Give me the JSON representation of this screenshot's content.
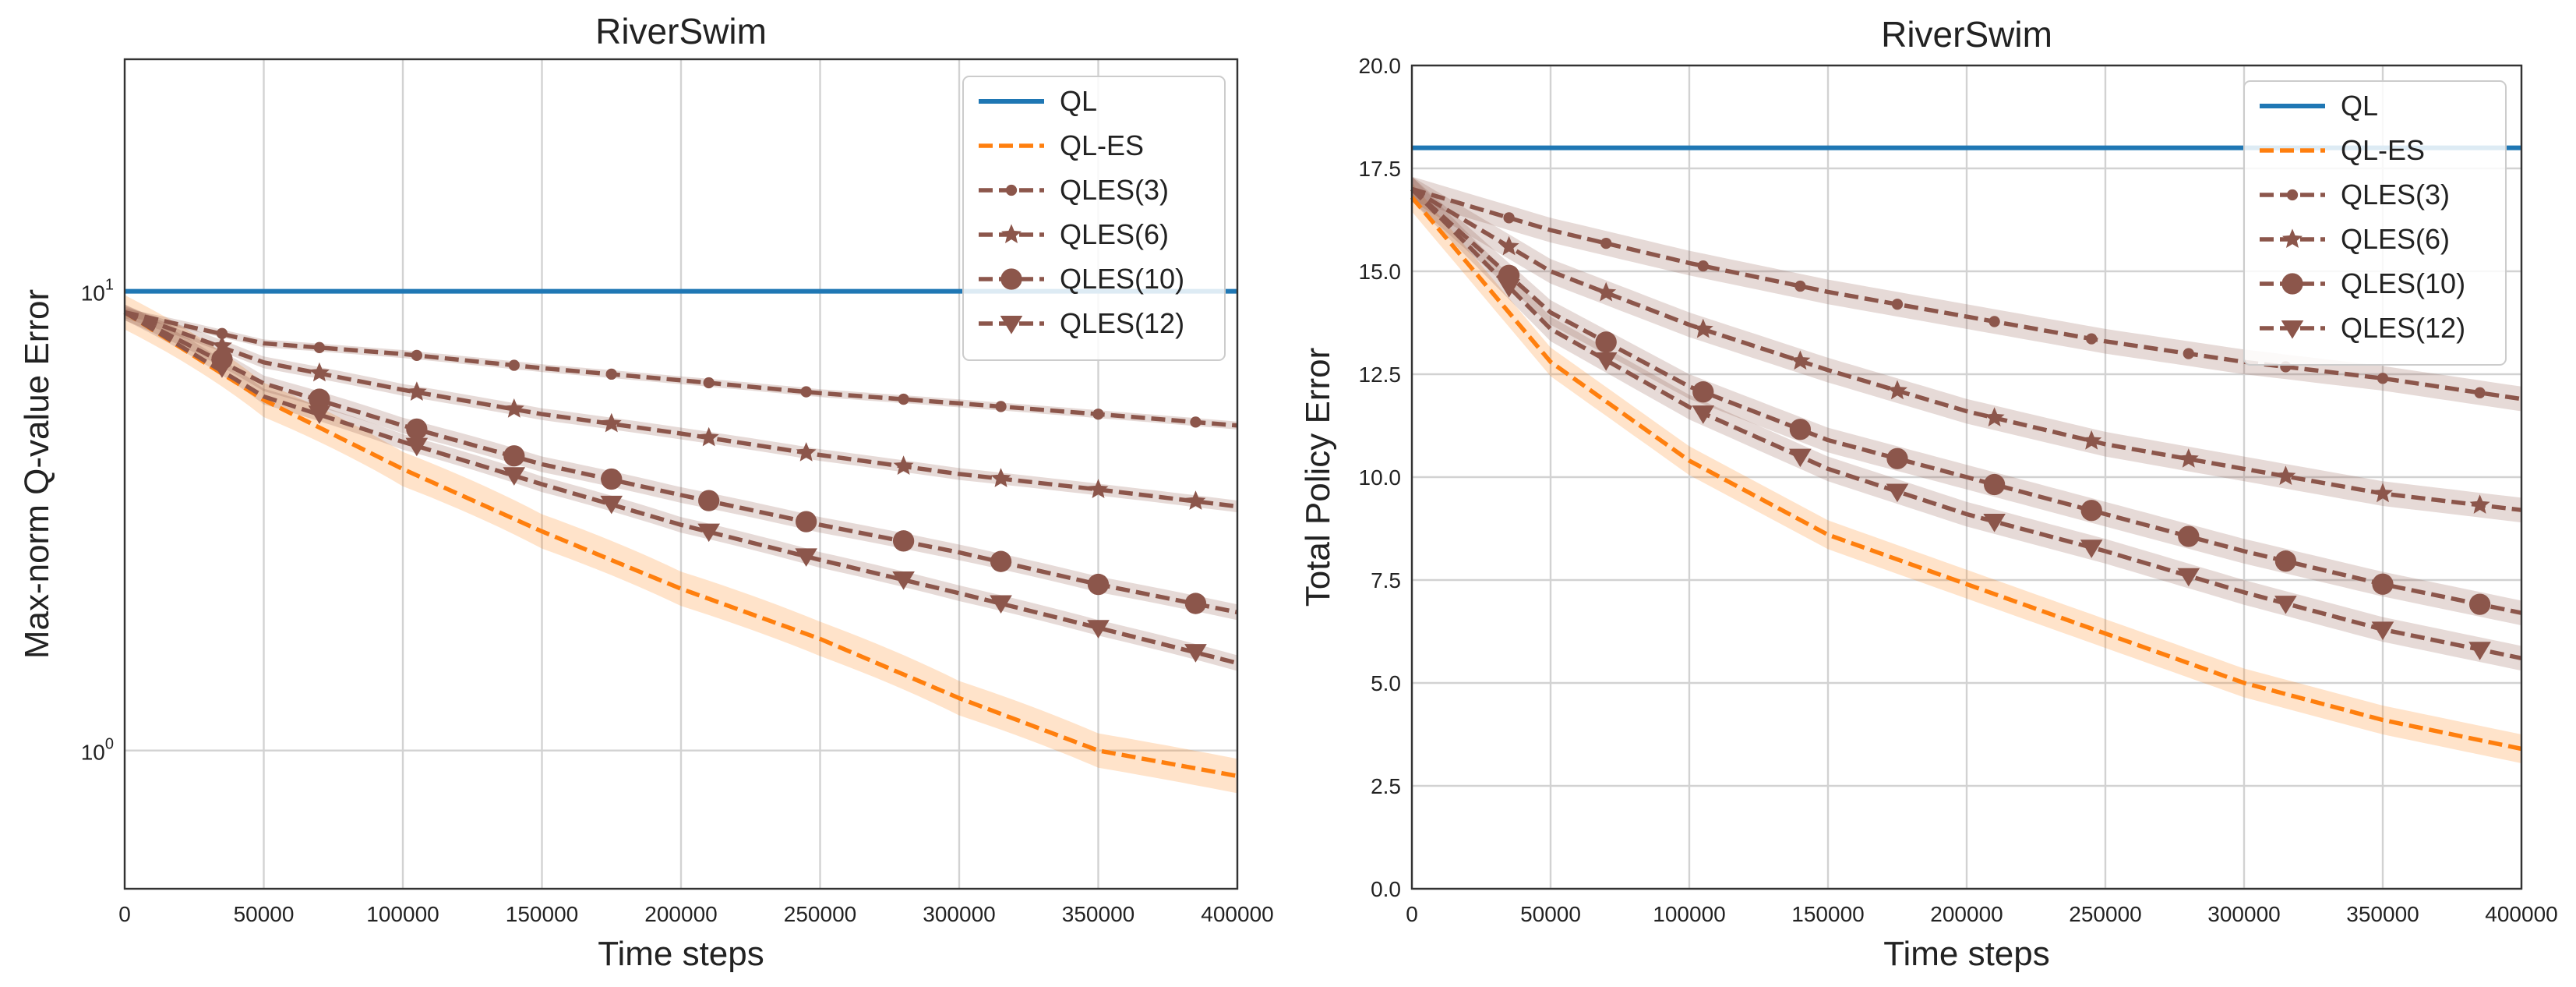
{
  "chart_data": [
    {
      "type": "line",
      "title": "RiverSwim",
      "xlabel": "Time steps",
      "ylabel": "Max-norm Q-value Error",
      "yscale": "log",
      "xlim": [
        0,
        400000
      ],
      "ylim": [
        0.5,
        32
      ],
      "xticks": [
        0,
        50000,
        100000,
        150000,
        200000,
        250000,
        300000,
        350000,
        400000
      ],
      "xtick_labels": [
        "0",
        "50000",
        "100000",
        "150000",
        "200000",
        "250000",
        "300000",
        "350000",
        "400000"
      ],
      "ytick_values": [
        1,
        10
      ],
      "ytick_labels": [
        {
          "base": "10",
          "exp": "0"
        },
        {
          "base": "10",
          "exp": "1"
        }
      ],
      "grid": true,
      "legend_position": "top-right",
      "x": [
        0,
        50000,
        100000,
        150000,
        200000,
        250000,
        300000,
        350000,
        400000
      ],
      "series": [
        {
          "name": "QL",
          "color": "#1f77b4",
          "style": "solid",
          "marker": "none",
          "values": [
            10,
            10,
            10,
            10,
            10,
            10,
            10,
            10,
            10
          ],
          "band": 0
        },
        {
          "name": "QL-ES",
          "color": "#ff7f0e",
          "style": "dashed",
          "marker": "none",
          "values": [
            9.0,
            5.8,
            4.1,
            3.0,
            2.25,
            1.75,
            1.3,
            1.0,
            0.88
          ],
          "band": 0.09
        },
        {
          "name": "QLES(3)",
          "color": "#8c564b",
          "style": "dashed",
          "marker": "dot",
          "values": [
            9.0,
            7.7,
            7.3,
            6.8,
            6.4,
            6.0,
            5.7,
            5.4,
            5.1
          ],
          "band": 0.02
        },
        {
          "name": "QLES(6)",
          "color": "#8c564b",
          "style": "dashed",
          "marker": "star",
          "values": [
            9.0,
            7.0,
            6.1,
            5.4,
            4.9,
            4.4,
            4.0,
            3.7,
            3.4
          ],
          "band": 0.03
        },
        {
          "name": "QLES(10)",
          "color": "#8c564b",
          "style": "dashed",
          "marker": "circle",
          "values": [
            9.0,
            6.3,
            5.1,
            4.2,
            3.6,
            3.1,
            2.7,
            2.3,
            2.0
          ],
          "band": 0.04
        },
        {
          "name": "QLES(12)",
          "color": "#8c564b",
          "style": "dashed",
          "marker": "triangle-down",
          "values": [
            9.0,
            5.9,
            4.7,
            3.8,
            3.1,
            2.6,
            2.2,
            1.85,
            1.55
          ],
          "band": 0.04
        }
      ]
    },
    {
      "type": "line",
      "title": "RiverSwim",
      "xlabel": "Time steps",
      "ylabel": "Total Policy Error",
      "yscale": "linear",
      "xlim": [
        0,
        400000
      ],
      "ylim": [
        0,
        20
      ],
      "xticks": [
        0,
        50000,
        100000,
        150000,
        200000,
        250000,
        300000,
        350000,
        400000
      ],
      "xtick_labels": [
        "0",
        "50000",
        "100000",
        "150000",
        "200000",
        "250000",
        "300000",
        "350000",
        "400000"
      ],
      "ytick_values": [
        0,
        2.5,
        5,
        7.5,
        10,
        12.5,
        15,
        17.5,
        20
      ],
      "ytick_labels": [
        "0.0",
        "2.5",
        "5.0",
        "7.5",
        "10.0",
        "12.5",
        "15.0",
        "17.5",
        "20.0"
      ],
      "grid": true,
      "legend_position": "top-right",
      "x": [
        0,
        50000,
        100000,
        150000,
        200000,
        250000,
        300000,
        350000,
        400000
      ],
      "series": [
        {
          "name": "QL",
          "color": "#1f77b4",
          "style": "solid",
          "marker": "none",
          "values": [
            18,
            18,
            18,
            18,
            18,
            18,
            18,
            18,
            18
          ],
          "band": 0
        },
        {
          "name": "QL-ES",
          "color": "#ff7f0e",
          "style": "dashed",
          "marker": "none",
          "values": [
            16.8,
            12.8,
            10.4,
            8.6,
            7.4,
            6.2,
            5.0,
            4.1,
            3.4
          ],
          "band": 0.35
        },
        {
          "name": "QLES(3)",
          "color": "#8c564b",
          "style": "dashed",
          "marker": "dot",
          "values": [
            17.0,
            16.0,
            15.2,
            14.5,
            13.9,
            13.3,
            12.8,
            12.4,
            11.9
          ],
          "band": 0.3
        },
        {
          "name": "QLES(6)",
          "color": "#8c564b",
          "style": "dashed",
          "marker": "star",
          "values": [
            17.0,
            15.0,
            13.7,
            12.6,
            11.6,
            10.8,
            10.2,
            9.6,
            9.2
          ],
          "band": 0.3
        },
        {
          "name": "QLES(10)",
          "color": "#8c564b",
          "style": "dashed",
          "marker": "circle",
          "values": [
            17.0,
            14.0,
            12.2,
            10.9,
            10.0,
            9.1,
            8.2,
            7.4,
            6.7
          ],
          "band": 0.3
        },
        {
          "name": "QLES(12)",
          "color": "#8c564b",
          "style": "dashed",
          "marker": "triangle-down",
          "values": [
            17.0,
            13.6,
            11.7,
            10.2,
            9.1,
            8.2,
            7.2,
            6.3,
            5.6
          ],
          "band": 0.3
        }
      ]
    }
  ]
}
